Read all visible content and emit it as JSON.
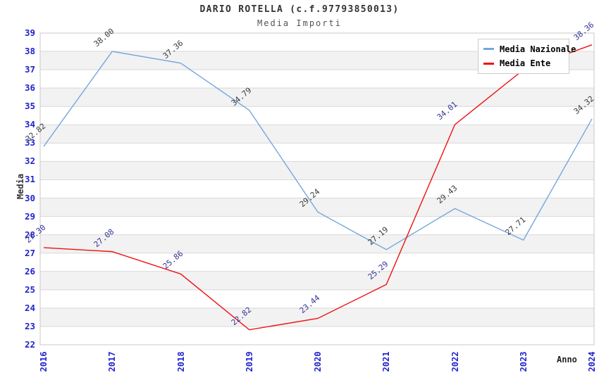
{
  "header": {
    "title": "DARIO ROTELLA (c.f.97793850013)",
    "subtitle": "Media Importi"
  },
  "chart_data": {
    "type": "line",
    "x": [
      "2016",
      "2017",
      "2018",
      "2019",
      "2020",
      "2021",
      "2022",
      "2023",
      "2024"
    ],
    "xlabel": "Anno",
    "ylabel": "Media",
    "ylim": [
      22,
      39
    ],
    "y_ticks": [
      22,
      23,
      24,
      25,
      26,
      27,
      28,
      29,
      30,
      31,
      32,
      33,
      34,
      35,
      36,
      37,
      38,
      39
    ],
    "grid": "horizontal",
    "legend_position": "top-right",
    "series": [
      {
        "name": "Media Nazionale",
        "color": "#74a7dc",
        "label_color": "#3a3a3a",
        "values": [
          32.82,
          38.0,
          37.36,
          34.79,
          29.24,
          27.19,
          29.43,
          27.71,
          34.32
        ],
        "labels": [
          "32.82",
          "38.00",
          "37.36",
          "34.79",
          "29.24",
          "27.19",
          "29.43",
          "27.71",
          "34.32"
        ]
      },
      {
        "name": "Media Ente",
        "color": "#ee1111",
        "label_color": "#333399",
        "values": [
          27.3,
          27.08,
          25.86,
          22.82,
          23.44,
          25.29,
          34.01,
          37.0,
          38.36
        ],
        "labels": [
          "27.30",
          "27.08",
          "25.86",
          "22.82",
          "23.44",
          "25.29",
          "34.01",
          null,
          "38.36"
        ]
      }
    ]
  },
  "theme": {
    "band_fill": "#f2f2f2",
    "grid_color": "#d9d9d9",
    "border_color": "#c8c8c8",
    "tick_label_color": "#2222cc"
  }
}
